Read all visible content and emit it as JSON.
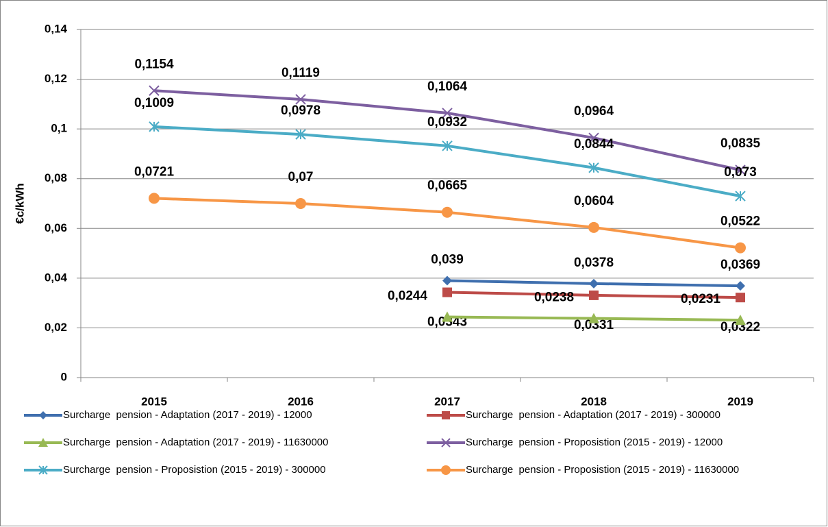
{
  "chart_data": {
    "type": "line",
    "y_label": "€c/kWh",
    "categories": [
      "2015",
      "2016",
      "2017",
      "2018",
      "2019"
    ],
    "ylim": [
      0,
      0.14
    ],
    "yticks": [
      0,
      {
        "value": 0.02,
        "label": "0,02"
      },
      {
        "value": 0.04,
        "label": "0,04"
      },
      {
        "value": 0.06,
        "label": "0,06"
      },
      {
        "value": 0.08,
        "label": "0,08"
      },
      {
        "value": 0.1,
        "label": "0,1"
      },
      {
        "value": 0.12,
        "label": "0,12"
      },
      {
        "value": 0.14,
        "label": "0,14"
      }
    ],
    "grid": true,
    "legend": "bottom",
    "series": [
      {
        "name": "Surcharge  pension - Adaptation (2017 - 2019) - 12000",
        "color": "#3f6fae",
        "marker": "diamond",
        "values": [
          null,
          null,
          0.039,
          0.0378,
          0.0369
        ],
        "value_labels": [
          null,
          null,
          "0,039",
          "0,0378",
          "0,0369"
        ]
      },
      {
        "name": "Surcharge  pension - Adaptation (2017 - 2019) - 300000",
        "color": "#bd4b48",
        "marker": "square",
        "values": [
          null,
          null,
          0.0343,
          0.0331,
          0.0322
        ],
        "value_labels": [
          null,
          null,
          "0,0343",
          "0,0331",
          "0,0322"
        ]
      },
      {
        "name": "Surcharge  pension - Adaptation (2017 - 2019) - 11630000",
        "color": "#98b954",
        "marker": "triangle",
        "values": [
          null,
          null,
          0.0244,
          0.0238,
          0.0231
        ],
        "value_labels": [
          null,
          null,
          "0,0244",
          "0,0238",
          "0,0231"
        ]
      },
      {
        "name": "Surcharge  pension - Proposistion (2015 - 2019) - 12000",
        "color": "#7d5fa0",
        "marker": "x",
        "values": [
          0.1154,
          0.1119,
          0.1064,
          0.0964,
          0.0835
        ],
        "value_labels": [
          "0,1154",
          "0,1119",
          "0,1064",
          "0,0964",
          "0,0835"
        ]
      },
      {
        "name": "Surcharge  pension - Proposistion (2015 - 2019) - 300000",
        "color": "#4bacc6",
        "marker": "star",
        "values": [
          0.1009,
          0.0978,
          0.0932,
          0.0844,
          0.073
        ],
        "value_labels": [
          "0,1009",
          "0,0978",
          "0,0932",
          "0,0844",
          "0,073"
        ]
      },
      {
        "name": "Surcharge  pension - Proposistion (2015 - 2019) - 11630000",
        "color": "#f79646",
        "marker": "circle",
        "values": [
          0.0721,
          0.07,
          0.0665,
          0.0604,
          0.0522
        ],
        "value_labels": [
          "0,0721",
          "0,07",
          "0,0665",
          "0,0604",
          "0,0522"
        ]
      }
    ]
  }
}
